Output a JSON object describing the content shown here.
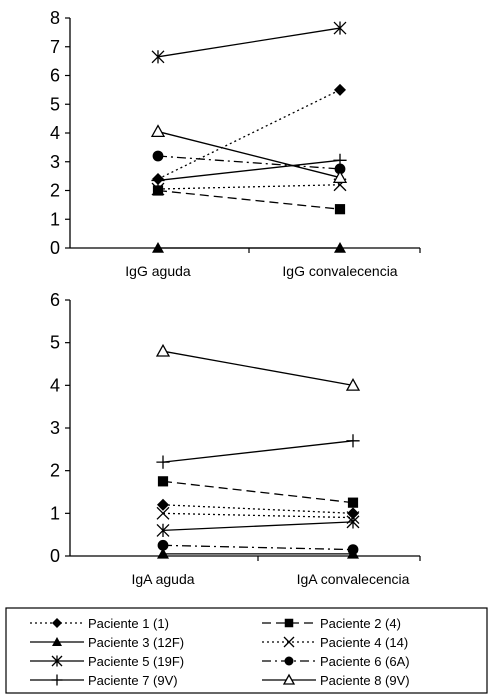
{
  "chart_data": [
    {
      "type": "line",
      "categories": [
        "IgG aguda",
        "IgG convalecencia"
      ],
      "ylim": [
        0,
        8
      ],
      "yticks": [
        0,
        1,
        2,
        3,
        4,
        5,
        6,
        7,
        8
      ],
      "grid": false,
      "series": [
        {
          "name": "Paciente 1  (1)",
          "values": [
            2.4,
            5.5
          ]
        },
        {
          "name": "Paciente 2 (4)",
          "values": [
            2.0,
            1.35
          ]
        },
        {
          "name": "Paciente 3 (12F)",
          "values": [
            0.0,
            0.0
          ]
        },
        {
          "name": "Paciente 4 (14)",
          "values": [
            2.05,
            2.2
          ]
        },
        {
          "name": "Paciente 5 (19F)",
          "values": [
            6.65,
            7.65
          ]
        },
        {
          "name": "Paciente 6 (6A)",
          "values": [
            3.2,
            2.75
          ]
        },
        {
          "name": "Paciente 7 (9V)",
          "values": [
            2.35,
            3.05
          ]
        },
        {
          "name": "Paciente 8 (9V)",
          "values": [
            4.05,
            2.45
          ]
        }
      ]
    },
    {
      "type": "line",
      "categories": [
        "IgA aguda",
        "IgA convalecencia"
      ],
      "ylim": [
        0,
        6
      ],
      "yticks": [
        0,
        1,
        2,
        3,
        4,
        5,
        6
      ],
      "grid": false,
      "series": [
        {
          "name": "Paciente 1  (1)",
          "values": [
            1.2,
            1.0
          ]
        },
        {
          "name": "Paciente 2 (4)",
          "values": [
            1.75,
            1.25
          ]
        },
        {
          "name": "Paciente 3 (12F)",
          "values": [
            0.05,
            0.05
          ]
        },
        {
          "name": "Paciente 4 (14)",
          "values": [
            1.0,
            0.9
          ]
        },
        {
          "name": "Paciente 5 (19F)",
          "values": [
            0.6,
            0.8
          ]
        },
        {
          "name": "Paciente 6 (6A)",
          "values": [
            0.25,
            0.15
          ]
        },
        {
          "name": "Paciente 7 (9V)",
          "values": [
            2.2,
            2.7
          ]
        },
        {
          "name": "Paciente 8 (9V)",
          "values": [
            4.8,
            4.0
          ]
        }
      ]
    }
  ],
  "legend": {
    "placement": "bottom",
    "items": [
      {
        "label": "Paciente 1  (1)",
        "dash": "dotted",
        "marker": "diamond"
      },
      {
        "label": "Paciente 2 (4)",
        "dash": "dashed",
        "marker": "square"
      },
      {
        "label": "Paciente 3 (12F)",
        "dash": "solid",
        "marker": "triangle-filled"
      },
      {
        "label": "Paciente 4 (14)",
        "dash": "dotted",
        "marker": "x"
      },
      {
        "label": "Paciente 5 (19F)",
        "dash": "solid",
        "marker": "asterisk"
      },
      {
        "label": "Paciente 6 (6A)",
        "dash": "dashdot",
        "marker": "circle"
      },
      {
        "label": "Paciente 7 (9V)",
        "dash": "solid",
        "marker": "plus"
      },
      {
        "label": "Paciente 8 (9V)",
        "dash": "solid",
        "marker": "triangle-open"
      }
    ]
  }
}
